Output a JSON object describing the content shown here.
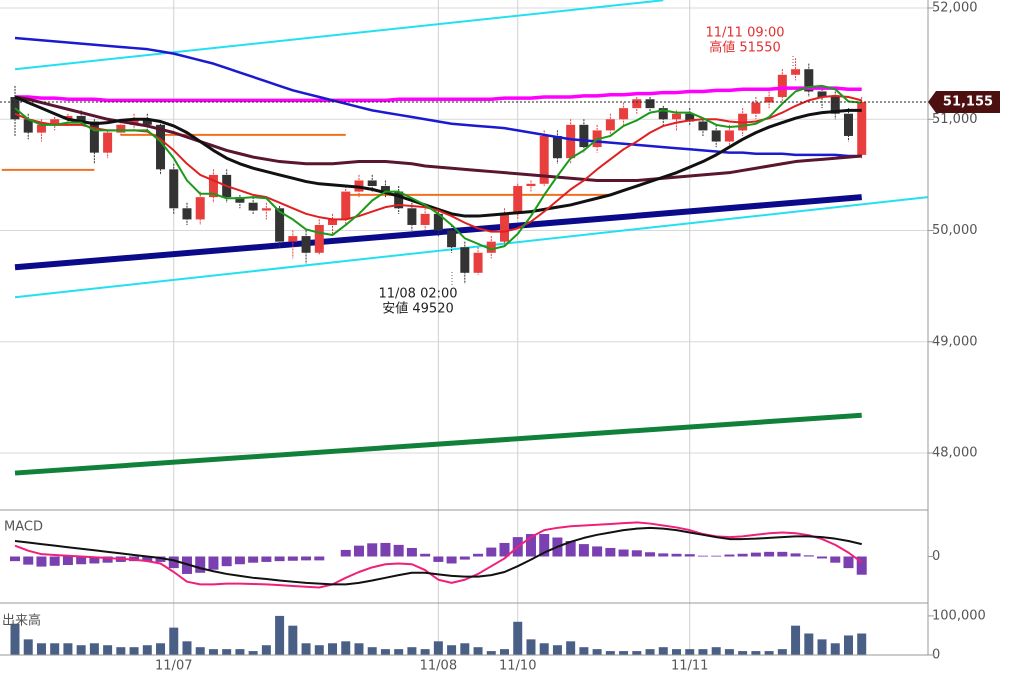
{
  "chart_data": [
    {
      "type": "candlestick",
      "grid": true,
      "up_color": "#e83e3e",
      "down_color": "#333333",
      "ylim": [
        47488,
        52072
      ],
      "yticks": [
        {
          "value": 48000,
          "label": "48,000"
        },
        {
          "value": 49000,
          "label": "49,000"
        },
        {
          "value": 50000,
          "label": "50,000"
        },
        {
          "value": 51000,
          "label": "51,000"
        },
        {
          "value": 52000,
          "label": "52,000"
        }
      ],
      "open": [
        51200,
        51000,
        50880,
        50950,
        51000,
        51030,
        50980,
        50700,
        50880,
        50950,
        51000,
        50950,
        50550,
        50200,
        50100,
        50300,
        50500,
        50300,
        50250,
        50180,
        50200,
        49900,
        49950,
        49800,
        50050,
        50100,
        50350,
        50450,
        50400,
        50350,
        50200,
        50050,
        50150,
        50000,
        49850,
        49620,
        49800,
        49900,
        50150,
        50400,
        50420,
        50850,
        50650,
        50950,
        50750,
        50900,
        51000,
        51100,
        51180,
        51100,
        51000,
        51050,
        50980,
        50900,
        50800,
        50900,
        51050,
        51150,
        51200,
        51400,
        51450,
        51250,
        51200,
        51050,
        50680
      ],
      "high": [
        51300,
        51050,
        51000,
        51020,
        51050,
        51080,
        51000,
        50900,
        50980,
        51050,
        51050,
        50960,
        50600,
        50250,
        50350,
        50550,
        50550,
        50320,
        50300,
        50250,
        50220,
        50000,
        50000,
        50100,
        50150,
        50400,
        50500,
        50500,
        50450,
        50400,
        50250,
        50200,
        50200,
        50050,
        49900,
        49850,
        49950,
        50200,
        50420,
        50450,
        50900,
        50900,
        51000,
        51000,
        50950,
        51050,
        51150,
        51200,
        51200,
        51120,
        51080,
        51100,
        51000,
        50950,
        50950,
        51100,
        51200,
        51250,
        51450,
        51550,
        51500,
        51300,
        51250,
        51100,
        51200
      ],
      "low": [
        50850,
        50820,
        50800,
        50900,
        50950,
        50950,
        50600,
        50650,
        50850,
        50900,
        50900,
        50500,
        50150,
        50050,
        50050,
        50250,
        50250,
        50200,
        50150,
        50100,
        49850,
        49750,
        49700,
        49780,
        49950,
        50050,
        50300,
        50350,
        50300,
        50150,
        50000,
        50000,
        49950,
        49800,
        49520,
        49600,
        49750,
        49850,
        50100,
        50350,
        50400,
        50600,
        50600,
        50700,
        50700,
        50850,
        50950,
        51050,
        51050,
        50950,
        50900,
        50950,
        50850,
        50750,
        50750,
        50850,
        51000,
        51100,
        51150,
        51350,
        51200,
        51100,
        51000,
        50800,
        50650
      ],
      "close": [
        51000,
        50880,
        50950,
        51000,
        51030,
        50980,
        50700,
        50880,
        50950,
        51000,
        50950,
        50550,
        50200,
        50100,
        50300,
        50500,
        50300,
        50250,
        50180,
        50200,
        49900,
        49950,
        49800,
        50050,
        50100,
        50350,
        50450,
        50400,
        50350,
        50200,
        50050,
        50150,
        50000,
        49850,
        49620,
        49800,
        49900,
        50150,
        50400,
        50420,
        50850,
        50650,
        50950,
        50750,
        50900,
        51000,
        51100,
        51180,
        51100,
        51000,
        51050,
        50980,
        50900,
        50800,
        50900,
        51050,
        51150,
        51200,
        51400,
        51450,
        51250,
        51200,
        51050,
        50850,
        51155
      ],
      "series": [
        {
          "color": "#ff00ff",
          "width": 3.5,
          "values": [
            51200,
            51200,
            51190,
            51190,
            51180,
            51180,
            51180,
            51170,
            51170,
            51170,
            51170,
            51170,
            51170,
            51170,
            51170,
            51170,
            51170,
            51170,
            51170,
            51170,
            51170,
            51170,
            51170,
            51170,
            51170,
            51170,
            51170,
            51170,
            51170,
            51180,
            51180,
            51180,
            51180,
            51180,
            51180,
            51180,
            51180,
            51190,
            51190,
            51190,
            51200,
            51200,
            51200,
            51210,
            51210,
            51220,
            51220,
            51230,
            51230,
            51240,
            51240,
            51250,
            51250,
            51260,
            51260,
            51270,
            51270,
            51270,
            51280,
            51280,
            51280,
            51280,
            51280,
            51270,
            51270
          ]
        },
        {
          "color": "#1a1ad0",
          "width": 2.5,
          "values": [
            51730,
            51720,
            51710,
            51700,
            51690,
            51680,
            51670,
            51660,
            51650,
            51640,
            51630,
            51610,
            51590,
            51560,
            51530,
            51500,
            51460,
            51420,
            51380,
            51340,
            51300,
            51260,
            51230,
            51200,
            51170,
            51140,
            51110,
            51080,
            51060,
            51040,
            51020,
            51000,
            50980,
            50960,
            50950,
            50940,
            50930,
            50920,
            50900,
            50880,
            50860,
            50840,
            50820,
            50810,
            50800,
            50790,
            50780,
            50770,
            50760,
            50750,
            50740,
            50730,
            50720,
            50710,
            50700,
            50700,
            50690,
            50690,
            50690,
            50680,
            50680,
            50680,
            50680,
            50670,
            50670
          ]
        },
        {
          "color": "#5a1530",
          "width": 3,
          "values": [
            51200,
            51180,
            51150,
            51120,
            51090,
            51060,
            51030,
            51000,
            50980,
            50960,
            50940,
            50910,
            50880,
            50840,
            50800,
            50760,
            50720,
            50690,
            50660,
            50640,
            50620,
            50610,
            50600,
            50600,
            50600,
            50610,
            50620,
            50620,
            50620,
            50610,
            50600,
            50580,
            50570,
            50560,
            50550,
            50540,
            50530,
            50520,
            50510,
            50500,
            50490,
            50480,
            50470,
            50460,
            50450,
            50450,
            50450,
            50450,
            50460,
            50470,
            50480,
            50490,
            50500,
            50510,
            50520,
            50540,
            50560,
            50580,
            50600,
            50620,
            50630,
            50640,
            50650,
            50660,
            50670
          ]
        },
        {
          "color": "#111111",
          "width": 3,
          "values": [
            51200,
            51150,
            51100,
            51050,
            51000,
            50980,
            50960,
            50970,
            50990,
            51000,
            51000,
            50980,
            50940,
            50880,
            50800,
            50720,
            50650,
            50600,
            50560,
            50530,
            50500,
            50470,
            50440,
            50420,
            50410,
            50400,
            50390,
            50370,
            50340,
            50310,
            50270,
            50230,
            50190,
            50150,
            50130,
            50130,
            50140,
            50150,
            50160,
            50170,
            50190,
            50210,
            50230,
            50260,
            50290,
            50320,
            50360,
            50400,
            50440,
            50480,
            50520,
            50570,
            50620,
            50680,
            50750,
            50820,
            50880,
            50930,
            50970,
            51010,
            51040,
            51060,
            51070,
            51080,
            51080
          ]
        },
        {
          "color": "#e02020",
          "width": 2,
          "values": [
            51050,
            51000,
            50970,
            50950,
            50950,
            50950,
            50920,
            50900,
            50900,
            50900,
            50890,
            50820,
            50720,
            50600,
            50500,
            50450,
            50400,
            50360,
            50320,
            50300,
            50250,
            50200,
            50150,
            50120,
            50100,
            50100,
            50130,
            50170,
            50210,
            50230,
            50220,
            50210,
            50180,
            50130,
            50070,
            50020,
            49990,
            49990,
            50020,
            50080,
            50170,
            50270,
            50370,
            50450,
            50550,
            50640,
            50730,
            50800,
            50880,
            50940,
            50970,
            50990,
            51000,
            51000,
            50980,
            50970,
            50980,
            51010,
            51060,
            51120,
            51170,
            51200,
            51210,
            51200,
            51170
          ]
        },
        {
          "color": "#1a9a1a",
          "width": 2,
          "values": [
            51100,
            51000,
            50950,
            50950,
            50970,
            50970,
            50900,
            50900,
            50900,
            50900,
            50900,
            50800,
            50650,
            50450,
            50330,
            50330,
            50290,
            50290,
            50300,
            50290,
            50170,
            50100,
            50010,
            49980,
            49960,
            50050,
            50150,
            50270,
            50350,
            50350,
            50290,
            50230,
            50150,
            50050,
            49930,
            49880,
            49830,
            49860,
            49970,
            50130,
            50320,
            50490,
            50650,
            50720,
            50820,
            50850,
            50940,
            50990,
            51060,
            51080,
            51060,
            51060,
            51010,
            50950,
            50930,
            50940,
            50960,
            51020,
            51140,
            51250,
            51290,
            51300,
            51270,
            51160,
            51150
          ]
        }
      ],
      "trend_lines": [
        {
          "color": "#22e0f0",
          "width": 2,
          "x": [
            0,
            49
          ],
          "y": [
            51450,
            52070
          ]
        },
        {
          "color": "#22e0f0",
          "width": 2,
          "x": [
            0,
            69
          ],
          "y": [
            49400,
            50300
          ]
        },
        {
          "color": "#0a0a8a",
          "width": 6,
          "x": [
            0,
            64
          ],
          "y": [
            49670,
            50300
          ]
        },
        {
          "color": "#11803a",
          "width": 5,
          "x": [
            0,
            64
          ],
          "y": [
            47820,
            48340
          ]
        }
      ],
      "levels": [
        {
          "color": "#f07020",
          "value": 50545,
          "x": [
            -1,
            6
          ]
        },
        {
          "color": "#f07020",
          "value": 50860,
          "x": [
            8,
            25
          ]
        },
        {
          "color": "#f07020",
          "value": 50320,
          "x": [
            25,
            45
          ]
        }
      ],
      "last_price": {
        "value": 51155,
        "label": "51,155"
      },
      "annotations": [
        "11/11 09:00",
        "高値 51550",
        "11/08 02:00",
        "安値 49520"
      ]
    },
    {
      "type": "macd",
      "title": "MACD",
      "ylim": [
        -120,
        120
      ],
      "yticks": [
        0
      ],
      "series": [
        {
          "color": "#f0207a",
          "values": [
            28,
            15,
            6,
            4,
            2,
            0,
            -2,
            -4,
            -6,
            -8,
            -12,
            -18,
            -40,
            -65,
            -72,
            -72,
            -70,
            -70,
            -71,
            -72,
            -74,
            -76,
            -78,
            -80,
            -72,
            -55,
            -40,
            -28,
            -20,
            -18,
            -20,
            -35,
            -60,
            -68,
            -60,
            -45,
            -25,
            -5,
            25,
            50,
            68,
            74,
            78,
            80,
            82,
            84,
            86,
            88,
            85,
            80,
            75,
            68,
            58,
            52,
            50,
            52,
            56,
            60,
            62,
            60,
            55,
            45,
            30,
            10,
            -15
          ]
        },
        {
          "color": "#111111",
          "values": [
            40,
            36,
            32,
            28,
            24,
            20,
            16,
            12,
            8,
            4,
            0,
            -4,
            -10,
            -20,
            -30,
            -38,
            -45,
            -50,
            -55,
            -58,
            -62,
            -65,
            -68,
            -70,
            -72,
            -72,
            -68,
            -62,
            -55,
            -48,
            -42,
            -42,
            -46,
            -50,
            -52,
            -52,
            -48,
            -40,
            -25,
            -8,
            10,
            25,
            38,
            48,
            56,
            62,
            68,
            72,
            74,
            72,
            68,
            62,
            56,
            50,
            45,
            45,
            46,
            48,
            50,
            52,
            52,
            50,
            46,
            40,
            32
          ]
        }
      ],
      "histogram": {
        "color": "#7a3fb0",
        "values": [
          -12,
          -21,
          -26,
          -24,
          -22,
          -20,
          -18,
          -16,
          -14,
          -12,
          -12,
          -14,
          -30,
          -45,
          -42,
          -34,
          -25,
          -20,
          -16,
          -14,
          -12,
          -11,
          -10,
          -10,
          0,
          17,
          28,
          34,
          35,
          30,
          22,
          7,
          -14,
          -18,
          -8,
          7,
          23,
          35,
          50,
          58,
          58,
          49,
          40,
          32,
          26,
          22,
          18,
          16,
          11,
          8,
          7,
          6,
          2,
          2,
          5,
          7,
          10,
          12,
          12,
          8,
          3,
          -5,
          -16,
          -30,
          -47
        ]
      }
    },
    {
      "type": "bar",
      "title": "出来高",
      "color": "#4a5f85",
      "ylim": [
        0,
        133000
      ],
      "yticks": [
        0,
        {
          "value": 100000,
          "label": "100,000"
        }
      ],
      "categories": [
        null,
        null,
        null,
        null,
        null,
        null,
        null,
        null,
        null,
        null,
        null,
        null,
        "11/07",
        null,
        null,
        null,
        null,
        null,
        null,
        null,
        null,
        null,
        null,
        null,
        null,
        null,
        null,
        null,
        null,
        null,
        null,
        null,
        "11/08",
        null,
        null,
        null,
        null,
        null,
        "11/10",
        null,
        null,
        null,
        null,
        null,
        null,
        null,
        null,
        null,
        null,
        null,
        null,
        "11/11",
        null,
        null,
        null,
        null,
        null,
        null,
        null,
        null,
        null,
        null,
        null,
        null,
        null
      ],
      "values": [
        80000,
        40000,
        30000,
        30000,
        30000,
        25000,
        30000,
        25000,
        20000,
        20000,
        25000,
        30000,
        70000,
        35000,
        20000,
        15000,
        15000,
        15000,
        10000,
        25000,
        100000,
        75000,
        30000,
        25000,
        30000,
        35000,
        30000,
        20000,
        15000,
        15000,
        20000,
        15000,
        35000,
        25000,
        30000,
        20000,
        10000,
        15000,
        85000,
        40000,
        30000,
        25000,
        35000,
        20000,
        15000,
        10000,
        10000,
        10000,
        15000,
        20000,
        15000,
        15000,
        15000,
        20000,
        15000,
        10000,
        10000,
        10000,
        15000,
        75000,
        55000,
        40000,
        30000,
        50000,
        55000
      ]
    }
  ]
}
